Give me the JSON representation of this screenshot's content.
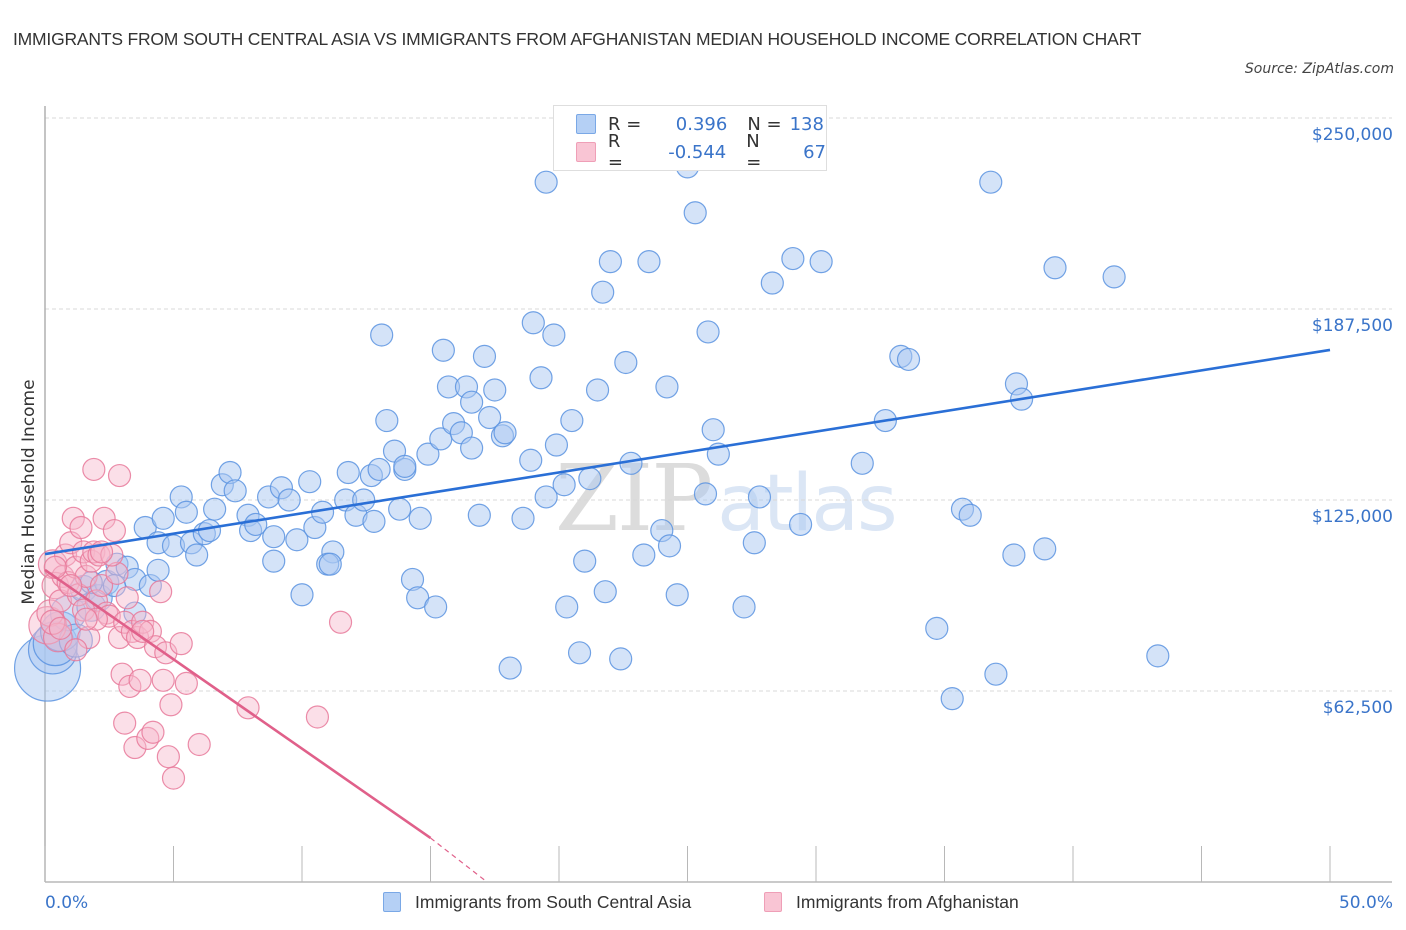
{
  "header": {
    "title": "IMMIGRANTS FROM SOUTH CENTRAL ASIA VS IMMIGRANTS FROM AFGHANISTAN MEDIAN HOUSEHOLD INCOME CORRELATION CHART",
    "source": "Source: ZipAtlas.com"
  },
  "watermark": {
    "zip": "ZIP",
    "atlas": "atlas"
  },
  "stats_legend": {
    "rows": [
      {
        "series": "Immigrants from South Central Asia",
        "r_label": "R =",
        "r_value": "0.396",
        "n_label": "N =",
        "n_value": "138",
        "color": "#a9c8f2"
      },
      {
        "series": "Immigrants from Afghanistan",
        "r_label": "R =",
        "r_value": "-0.544",
        "n_label": "N =",
        "n_value": "67",
        "color": "#f7b8cb"
      }
    ]
  },
  "chart_data": {
    "type": "scatter",
    "title": "IMMIGRANTS FROM SOUTH CENTRAL ASIA VS IMMIGRANTS FROM AFGHANISTAN MEDIAN HOUSEHOLD INCOME CORRELATION CHART",
    "xlabel": "",
    "ylabel": "Median Household Income",
    "xlim": [
      0,
      50
    ],
    "ylim": [
      0,
      250000
    ],
    "x_tick_labels": [
      "0.0%",
      "50.0%"
    ],
    "x_tick_marks": [
      0,
      5,
      10,
      15,
      20,
      25,
      30,
      35,
      40,
      45,
      50
    ],
    "y_ticks": [
      62500,
      125000,
      187500,
      250000
    ],
    "y_tick_labels": [
      "$62,500",
      "$125,000",
      "$187,500",
      "$250,000"
    ],
    "grid": "horizontal-dashed",
    "legend_position": "bottom-center",
    "series": [
      {
        "name": "Immigrants from South Central Asia",
        "color": "#5b93e0",
        "fill": "#a9c8f2",
        "r": 0.396,
        "n": 138,
        "trend": {
          "x": [
            0,
            50
          ],
          "y": [
            107300,
            174100
          ],
          "color": "#2a6fd6"
        },
        "points": [
          [
            0.1,
            70000,
            3
          ],
          [
            0.3,
            76000,
            2.2
          ],
          [
            0.4,
            78000,
            2
          ],
          [
            0.6,
            82000,
            1.8
          ],
          [
            0.9,
            88000,
            1.6
          ],
          [
            1.2,
            79000,
            1.5
          ],
          [
            1.5,
            96000,
            1.2
          ],
          [
            1.8,
            90000,
            1.3
          ],
          [
            2.1,
            93000,
            1.2
          ],
          [
            2.4,
            98000,
            1.1
          ],
          [
            2.8,
            104000,
            1
          ],
          [
            3.2,
            103000,
            1
          ],
          [
            3.5,
            99000,
            1
          ],
          [
            1.8,
            98000,
            1
          ],
          [
            2.7,
            97000,
            1
          ],
          [
            3.5,
            88000,
            1
          ],
          [
            4.1,
            97000,
            1
          ],
          [
            4.4,
            102000,
            1
          ],
          [
            3.9,
            116000,
            1
          ],
          [
            4.4,
            111000,
            1
          ],
          [
            4.6,
            119000,
            1
          ],
          [
            5.0,
            110000,
            1
          ],
          [
            5.3,
            126000,
            1
          ],
          [
            5.5,
            121000,
            1
          ],
          [
            5.7,
            111000,
            1
          ],
          [
            5.9,
            107000,
            1
          ],
          [
            6.2,
            114000,
            1
          ],
          [
            6.4,
            115000,
            1
          ],
          [
            6.6,
            122000,
            1
          ],
          [
            6.9,
            130000,
            1
          ],
          [
            7.2,
            134000,
            1
          ],
          [
            7.4,
            128000,
            1
          ],
          [
            7.9,
            120000,
            1
          ],
          [
            8.0,
            115000,
            1
          ],
          [
            8.2,
            117000,
            1
          ],
          [
            8.7,
            126000,
            1
          ],
          [
            8.9,
            105000,
            1
          ],
          [
            9.2,
            129000,
            1
          ],
          [
            9.5,
            125000,
            1
          ],
          [
            9.8,
            112000,
            1
          ],
          [
            10.0,
            94000,
            1
          ],
          [
            10.3,
            131000,
            1
          ],
          [
            10.5,
            116000,
            1
          ],
          [
            10.8,
            121000,
            1
          ],
          [
            11.2,
            108000,
            1
          ],
          [
            11.0,
            104000,
            1
          ],
          [
            11.7,
            125000,
            1
          ],
          [
            11.8,
            134000,
            1
          ],
          [
            12.1,
            120000,
            1
          ],
          [
            12.4,
            125000,
            1
          ],
          [
            12.8,
            118000,
            1
          ],
          [
            12.7,
            133000,
            1
          ],
          [
            13.1,
            179000,
            1
          ],
          [
            13.0,
            135000,
            1
          ],
          [
            13.3,
            151000,
            1
          ],
          [
            13.6,
            141000,
            1
          ],
          [
            13.8,
            122000,
            1
          ],
          [
            14.0,
            135000,
            1
          ],
          [
            14.3,
            99000,
            1
          ],
          [
            14.5,
            93000,
            1
          ],
          [
            14.6,
            119000,
            1
          ],
          [
            14.9,
            140000,
            1
          ],
          [
            15.2,
            90000,
            1
          ],
          [
            15.4,
            145000,
            1
          ],
          [
            15.5,
            174000,
            1
          ],
          [
            15.7,
            162000,
            1
          ],
          [
            15.9,
            150000,
            1
          ],
          [
            16.2,
            147000,
            1
          ],
          [
            16.4,
            162000,
            1
          ],
          [
            16.6,
            142000,
            1
          ],
          [
            16.9,
            120000,
            1
          ],
          [
            17.1,
            172000,
            1
          ],
          [
            17.3,
            152000,
            1
          ],
          [
            17.5,
            161000,
            1
          ],
          [
            17.8,
            146000,
            1
          ],
          [
            17.9,
            147000,
            1
          ],
          [
            18.1,
            70000,
            1
          ],
          [
            18.6,
            119000,
            1
          ],
          [
            18.9,
            138000,
            1
          ],
          [
            19.0,
            183000,
            1
          ],
          [
            19.3,
            165000,
            1
          ],
          [
            19.5,
            126000,
            1
          ],
          [
            19.8,
            179000,
            1
          ],
          [
            19.9,
            143000,
            1
          ],
          [
            19.5,
            229000,
            1
          ],
          [
            20.2,
            130000,
            1
          ],
          [
            20.3,
            90000,
            1
          ],
          [
            20.5,
            151000,
            1
          ],
          [
            20.8,
            75000,
            1
          ],
          [
            21.0,
            105000,
            1
          ],
          [
            21.2,
            132000,
            1
          ],
          [
            21.5,
            161000,
            1
          ],
          [
            21.7,
            193000,
            1
          ],
          [
            21.8,
            95000,
            1
          ],
          [
            22.0,
            203000,
            1
          ],
          [
            22.4,
            73000,
            1
          ],
          [
            22.6,
            170000,
            1
          ],
          [
            22.8,
            137000,
            1
          ],
          [
            23.3,
            107000,
            1
          ],
          [
            23.5,
            203000,
            1
          ],
          [
            24.0,
            115000,
            1
          ],
          [
            24.2,
            162000,
            1
          ],
          [
            24.3,
            110000,
            1
          ],
          [
            24.6,
            94000,
            1
          ],
          [
            25.0,
            234000,
            1
          ],
          [
            25.3,
            219000,
            1
          ],
          [
            25.8,
            180000,
            1
          ],
          [
            26.0,
            148000,
            1
          ],
          [
            26.2,
            140000,
            1
          ],
          [
            27.2,
            90000,
            1
          ],
          [
            27.6,
            111000,
            1
          ],
          [
            27.8,
            126000,
            1
          ],
          [
            28.3,
            196000,
            1
          ],
          [
            29.1,
            204000,
            1
          ],
          [
            29.4,
            117000,
            1
          ],
          [
            30.2,
            203000,
            1
          ],
          [
            31.8,
            137000,
            1
          ],
          [
            32.7,
            151000,
            1
          ],
          [
            33.3,
            172000,
            1
          ],
          [
            33.6,
            171000,
            1
          ],
          [
            34.7,
            83000,
            1
          ],
          [
            35.3,
            60000,
            1
          ],
          [
            35.7,
            122000,
            1
          ],
          [
            36.0,
            120000,
            1
          ],
          [
            36.8,
            229000,
            1
          ],
          [
            37.0,
            68000,
            1
          ],
          [
            37.7,
            107000,
            1
          ],
          [
            37.8,
            163000,
            1
          ],
          [
            38.0,
            158000,
            1
          ],
          [
            38.9,
            109000,
            1
          ],
          [
            39.3,
            201000,
            1
          ],
          [
            41.6,
            198000,
            1
          ],
          [
            43.3,
            74000,
            1
          ],
          [
            11.1,
            104000,
            1
          ],
          [
            8.9,
            113000,
            1
          ],
          [
            14.0,
            136000,
            1
          ],
          [
            16.6,
            157000,
            1
          ],
          [
            25.7,
            127000,
            1
          ]
        ]
      },
      {
        "name": "Immigrants from Afghanistan",
        "color": "#e8799a",
        "fill": "#f7b8cb",
        "r": -0.544,
        "n": 67,
        "trend": {
          "x": [
            0,
            15.0
          ],
          "y": [
            102100,
            14400
          ],
          "dashed_x": [
            15.0,
            17.2
          ],
          "dashed_y": [
            14400,
            0
          ],
          "color": "#e0608a"
        },
        "points": [
          [
            0.1,
            84000,
            1.7
          ],
          [
            0.2,
            88000,
            1.2
          ],
          [
            0.3,
            104000,
            1.3
          ],
          [
            0.4,
            97000,
            1.2
          ],
          [
            0.5,
            80000,
            1.3
          ],
          [
            0.6,
            92000,
            1
          ],
          [
            0.7,
            100000,
            1
          ],
          [
            0.8,
            107000,
            1
          ],
          [
            0.9,
            98000,
            1
          ],
          [
            1.0,
            111000,
            1
          ],
          [
            1.1,
            119000,
            1
          ],
          [
            1.2,
            103000,
            1
          ],
          [
            1.3,
            94000,
            1
          ],
          [
            1.4,
            116000,
            1
          ],
          [
            1.5,
            108000,
            1
          ],
          [
            1.6,
            100000,
            1
          ],
          [
            1.7,
            80000,
            1
          ],
          [
            1.8,
            105000,
            1
          ],
          [
            1.9,
            108000,
            1
          ],
          [
            2.0,
            92000,
            1
          ],
          [
            2.1,
            107000,
            1
          ],
          [
            2.2,
            97000,
            1
          ],
          [
            2.3,
            119000,
            1
          ],
          [
            2.4,
            88000,
            1
          ],
          [
            1.2,
            76000,
            1
          ],
          [
            1.9,
            135000,
            1
          ],
          [
            2.5,
            87000,
            1
          ],
          [
            2.7,
            115000,
            1
          ],
          [
            2.8,
            101000,
            1
          ],
          [
            2.9,
            80000,
            1
          ],
          [
            3.0,
            68000,
            1
          ],
          [
            3.1,
            85000,
            1
          ],
          [
            3.3,
            64000,
            1
          ],
          [
            3.4,
            82000,
            1
          ],
          [
            3.5,
            44000,
            1
          ],
          [
            3.1,
            52000,
            1
          ],
          [
            3.6,
            80000,
            1
          ],
          [
            3.7,
            66000,
            1
          ],
          [
            3.8,
            85000,
            1
          ],
          [
            4.0,
            47000,
            1
          ],
          [
            4.1,
            82000,
            1
          ],
          [
            4.2,
            49000,
            1
          ],
          [
            4.3,
            77000,
            1
          ],
          [
            4.5,
            95000,
            1
          ],
          [
            4.6,
            66000,
            1
          ],
          [
            4.7,
            75000,
            1
          ],
          [
            4.8,
            41000,
            1
          ],
          [
            4.9,
            58000,
            1
          ],
          [
            5.0,
            34000,
            1
          ],
          [
            5.3,
            78000,
            1
          ],
          [
            5.5,
            65000,
            1
          ],
          [
            6.0,
            45000,
            1
          ],
          [
            7.9,
            57000,
            1
          ],
          [
            10.6,
            54000,
            1
          ],
          [
            11.5,
            85000,
            1
          ],
          [
            2.9,
            133000,
            1
          ],
          [
            0.3,
            85000,
            1.1
          ],
          [
            0.6,
            83000,
            1
          ],
          [
            1.5,
            89000,
            1
          ],
          [
            2.0,
            86000,
            1
          ],
          [
            2.6,
            107000,
            1
          ],
          [
            3.2,
            93000,
            1
          ],
          [
            3.8,
            82000,
            1
          ],
          [
            1.0,
            97000,
            1
          ],
          [
            0.4,
            103000,
            1
          ],
          [
            2.2,
            108000,
            1
          ],
          [
            1.6,
            86000,
            1
          ]
        ]
      }
    ]
  },
  "axes": {
    "y_label": "Median Household Income",
    "x_min_label": "0.0%",
    "x_max_label": "50.0%"
  },
  "bottom_legend": {
    "items": [
      {
        "label": "Immigrants from South Central Asia",
        "color": "#a9c8f2",
        "border": "#6ea0e4"
      },
      {
        "label": "Immigrants from Afghanistan",
        "color": "#f7c3d3",
        "border": "#ee9fb7"
      }
    ]
  }
}
